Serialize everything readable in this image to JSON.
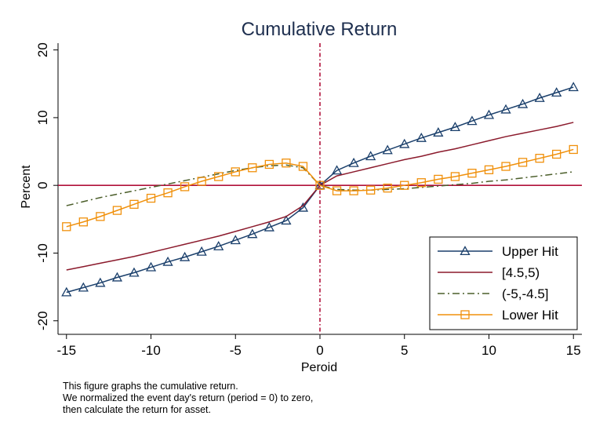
{
  "chart_data": {
    "type": "line",
    "title": "Cumulative Return",
    "xlabel": "Peroid",
    "ylabel": "Percent",
    "xlim": [
      -15.5,
      15.5
    ],
    "ylim": [
      -22,
      21
    ],
    "xticks": [
      -15,
      -10,
      -5,
      0,
      5,
      10,
      15
    ],
    "yticks": [
      -20,
      -10,
      0,
      10,
      20
    ],
    "hline": 0,
    "vline": 0,
    "grid": false,
    "legend_position": "bottom-right",
    "x": [
      -15,
      -14,
      -13,
      -12,
      -11,
      -10,
      -9,
      -8,
      -7,
      -6,
      -5,
      -4,
      -3,
      -2,
      -1,
      0,
      1,
      2,
      3,
      4,
      5,
      6,
      7,
      8,
      9,
      10,
      11,
      12,
      13,
      14,
      15
    ],
    "series": [
      {
        "name": "Upper Hit",
        "color": "#1a3f6b",
        "marker": "triangle",
        "dash": "solid",
        "values": [
          -15.8,
          -15.1,
          -14.4,
          -13.6,
          -12.9,
          -12.1,
          -11.3,
          -10.6,
          -9.8,
          -9.0,
          -8.1,
          -7.2,
          -6.2,
          -5.2,
          -3.3,
          0.0,
          2.2,
          3.3,
          4.3,
          5.2,
          6.1,
          7.0,
          7.8,
          8.6,
          9.5,
          10.4,
          11.2,
          12.0,
          12.9,
          13.7,
          14.5
        ]
      },
      {
        "name": "[4.5,5)",
        "color": "#8b1a2c",
        "marker": "none",
        "dash": "solid",
        "values": [
          -12.5,
          -12.0,
          -11.5,
          -11.0,
          -10.5,
          -9.9,
          -9.3,
          -8.7,
          -8.1,
          -7.5,
          -6.8,
          -6.1,
          -5.4,
          -4.6,
          -3.0,
          0.0,
          1.4,
          2.0,
          2.6,
          3.2,
          3.8,
          4.3,
          4.9,
          5.4,
          6.0,
          6.6,
          7.2,
          7.7,
          8.2,
          8.7,
          9.3
        ]
      },
      {
        "name": "(-5,-4.5]",
        "color": "#4b5e2a",
        "marker": "none",
        "dash": "dashdot",
        "values": [
          -3.0,
          -2.4,
          -1.8,
          -1.3,
          -0.8,
          -0.3,
          0.2,
          0.7,
          1.2,
          1.7,
          2.2,
          2.6,
          2.9,
          3.0,
          2.6,
          0.0,
          -0.6,
          -0.7,
          -0.7,
          -0.6,
          -0.5,
          -0.3,
          -0.1,
          0.1,
          0.3,
          0.6,
          0.8,
          1.1,
          1.4,
          1.7,
          2.0
        ]
      },
      {
        "name": "Lower Hit",
        "color": "#f0900b",
        "marker": "square",
        "dash": "solid",
        "values": [
          -6.1,
          -5.4,
          -4.6,
          -3.7,
          -2.8,
          -1.9,
          -1.1,
          -0.2,
          0.6,
          1.3,
          2.0,
          2.6,
          3.1,
          3.3,
          2.8,
          0.0,
          -0.8,
          -0.8,
          -0.7,
          -0.4,
          0.0,
          0.4,
          0.9,
          1.3,
          1.8,
          2.3,
          2.8,
          3.4,
          4.0,
          4.6,
          5.3
        ]
      }
    ]
  },
  "notes": [
    "This figure graphs the cumulative return.",
    "We normalized the event day's return (period = 0) to zero,",
    "then calculate the return for asset."
  ]
}
